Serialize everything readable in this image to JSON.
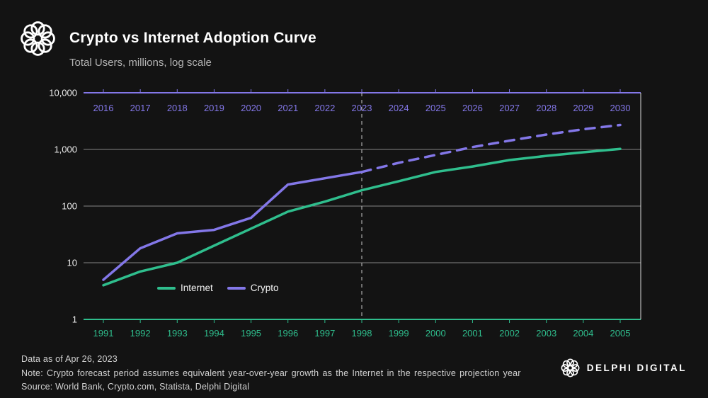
{
  "header": {
    "title": "Crypto vs Internet Adoption Curve",
    "subtitle": "Total Users, millions, log scale"
  },
  "chart_data": {
    "type": "line",
    "title": "Crypto vs Internet Adoption Curve",
    "ylabel": "Total Users, millions, log scale",
    "y_scale": "log",
    "ylim": [
      1,
      10000
    ],
    "y_ticks": [
      1,
      10,
      100,
      1000,
      10000
    ],
    "y_tick_labels": [
      "1",
      "10",
      "100",
      "1,000",
      "10,000"
    ],
    "grid": "horizontal",
    "legend_position": "inside-bottom-left",
    "x_axis_top": {
      "series": "Crypto",
      "color": "#8377E8",
      "years": [
        "2016",
        "2017",
        "2018",
        "2019",
        "2020",
        "2021",
        "2022",
        "2023",
        "2024",
        "2025",
        "2026",
        "2027",
        "2028",
        "2029",
        "2030"
      ]
    },
    "x_axis_bottom": {
      "series": "Internet",
      "color": "#2FBE8D",
      "years": [
        "1991",
        "1992",
        "1993",
        "1994",
        "1995",
        "1996",
        "1997",
        "1998",
        "1999",
        "2000",
        "2001",
        "2002",
        "2003",
        "2004",
        "2005"
      ]
    },
    "forecast": {
      "divider_year_top": "2023",
      "divider_year_bottom": "1998",
      "divider_index": 7,
      "style": "dashed"
    },
    "series": [
      {
        "name": "Internet",
        "color": "#2FBE8D",
        "style": "solid",
        "years": [
          1991,
          1992,
          1993,
          1994,
          1995,
          1996,
          1997,
          1998,
          1999,
          2000,
          2001,
          2002,
          2003,
          2004,
          2005
        ],
        "values": [
          4,
          7,
          10,
          20,
          40,
          80,
          120,
          190,
          275,
          400,
          500,
          650,
          770,
          890,
          1020
        ]
      },
      {
        "name": "Crypto",
        "color": "#8377E8",
        "style": "solid-then-dashed",
        "forecast_from_index": 7,
        "years": [
          2016,
          2017,
          2018,
          2019,
          2020,
          2021,
          2022,
          2023,
          2024,
          2025,
          2026,
          2027,
          2028,
          2029,
          2030
        ],
        "values": [
          5,
          18,
          33,
          38,
          62,
          240,
          310,
          400,
          580,
          800,
          1100,
          1430,
          1830,
          2270,
          2700
        ]
      }
    ]
  },
  "footer": {
    "data_as_of": "Data as of Apr 26, 2023",
    "note": "Note: Crypto forecast period assumes equivalent year-over-year growth as the Internet in the respective projection year",
    "source": "Source: World Bank, Crypto.com,  Statista, Delphi Digital"
  },
  "branding": {
    "name": "DELPHI DIGITAL"
  }
}
